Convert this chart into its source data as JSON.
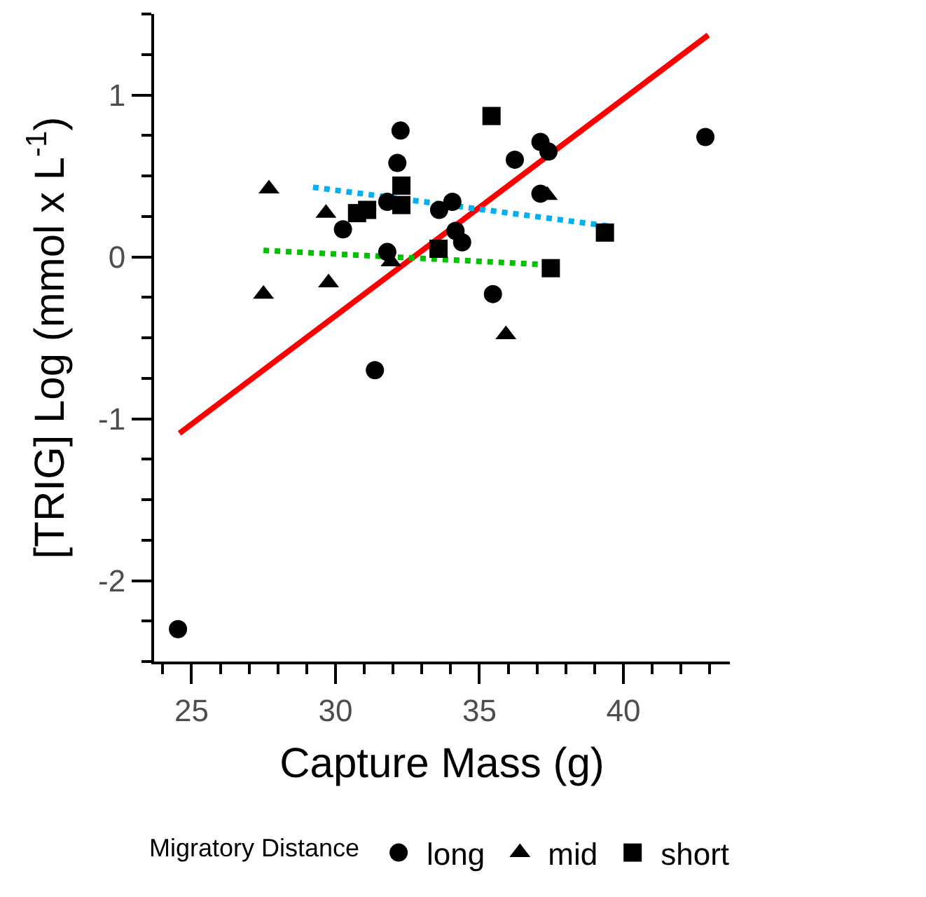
{
  "chart_data": {
    "type": "scatter",
    "xlabel": "Capture Mass (g)",
    "ylabel": "[TRIG] Log (mmol x L$^{-1}$)",
    "legend_title": "Migratory Distance",
    "legend": "bottom",
    "xlim": [
      23.7,
      43.7
    ],
    "ylim": [
      -2.5,
      1.5
    ],
    "xticks": [
      {
        "value": 24,
        "label": null
      },
      25,
      {
        "value": 26,
        "label": null
      },
      {
        "value": 27,
        "label": null
      },
      {
        "value": 28,
        "label": null
      },
      {
        "value": 29,
        "label": null
      },
      30,
      {
        "value": 31,
        "label": null
      },
      {
        "value": 32,
        "label": null
      },
      {
        "value": 33,
        "label": null
      },
      {
        "value": 34,
        "label": null
      },
      35,
      {
        "value": 36,
        "label": null
      },
      {
        "value": 37,
        "label": null
      },
      {
        "value": 38,
        "label": null
      },
      {
        "value": 39,
        "label": null
      },
      40,
      {
        "value": 41,
        "label": null
      },
      {
        "value": 42,
        "label": null
      },
      {
        "value": 43,
        "label": null
      }
    ],
    "yticks": [
      {
        "value": -2.5,
        "label": null
      },
      {
        "value": -2.25,
        "label": null
      },
      -2,
      {
        "value": -1.75,
        "label": null
      },
      {
        "value": -1.5,
        "label": null
      },
      {
        "value": -1.25,
        "label": null
      },
      -1,
      {
        "value": -0.75,
        "label": null
      },
      {
        "value": -0.5,
        "label": null
      },
      {
        "value": -0.25,
        "label": null
      },
      0,
      {
        "value": 0.25,
        "label": null
      },
      {
        "value": 0.5,
        "label": null
      },
      {
        "value": 0.75,
        "label": null
      },
      1,
      {
        "value": 1.25,
        "label": null
      },
      {
        "value": 1.5,
        "label": null
      }
    ],
    "series": [
      {
        "name": "long",
        "color": "#000000",
        "marker": "circle",
        "x": [
          24.53,
          32.26,
          32.15,
          30.26,
          31.8,
          33.6,
          34.06,
          34.17,
          34.4,
          31.8,
          35.47,
          31.37,
          36.23,
          37.12,
          37.4,
          37.12,
          42.85
        ],
        "values": [
          -2.3,
          0.78,
          0.58,
          0.17,
          0.34,
          0.29,
          0.34,
          0.16,
          0.09,
          0.03,
          -0.23,
          -0.7,
          0.6,
          0.71,
          0.65,
          0.39,
          0.74
        ]
      },
      {
        "name": "mid",
        "color": "#000000",
        "marker": "triangle",
        "x": [
          27.69,
          29.67,
          27.5,
          29.76,
          31.93,
          35.92,
          37.36
        ],
        "values": [
          0.42,
          0.27,
          -0.23,
          -0.16,
          -0.03,
          -0.48,
          0.38
        ]
      },
      {
        "name": "short",
        "color": "#000000",
        "marker": "square",
        "x": [
          35.42,
          32.29,
          32.29,
          30.75,
          31.1,
          33.58,
          39.36,
          37.48
        ],
        "values": [
          0.87,
          0.44,
          0.32,
          0.27,
          0.29,
          0.05,
          0.15,
          -0.07
        ]
      },
      {
        "type": "line",
        "color": "#ff0000",
        "line_style": "solid",
        "x": [
          24.58,
          42.95
        ],
        "values": [
          -1.09,
          1.37
        ]
      },
      {
        "type": "line",
        "color": "#00b0f0",
        "line_style": "dotted",
        "x": [
          29.22,
          39.48
        ],
        "values": [
          0.43,
          0.19
        ]
      },
      {
        "type": "line",
        "color": "#00c000",
        "line_style": "dotted",
        "x": [
          27.5,
          37.48
        ],
        "values": [
          0.04,
          -0.05
        ]
      }
    ]
  }
}
